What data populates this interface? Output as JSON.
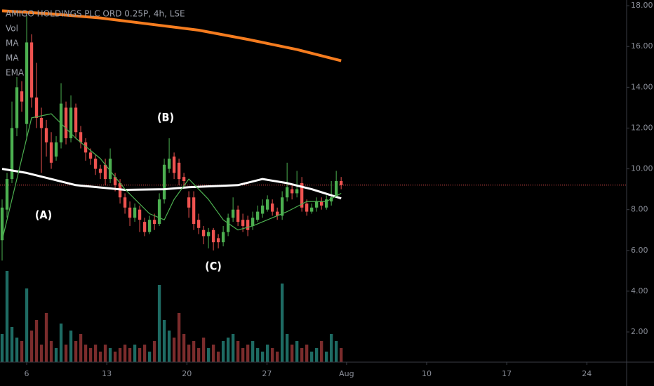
{
  "chart_data": {
    "type": "candlestick",
    "title": "AMIGO HOLDINGS PLC ORD 0.25P, 4h, LSE",
    "indicator_labels": [
      "Vol",
      "MA",
      "MA",
      "EMA"
    ],
    "annotations": [
      "(A)",
      "(B)",
      "(C)"
    ],
    "up_color": "#4caf50",
    "down_color": "#ef5350",
    "volume_up_color": "#1e6b63",
    "volume_down_color": "#7b2c2c",
    "open": [
      6.5,
      8.0,
      9.5,
      12.0,
      13.8,
      12.2,
      16.2,
      13.5,
      12.5,
      12.0,
      11.3,
      10.6,
      11.3,
      13.0,
      11.5,
      13.0,
      11.8,
      11.3,
      10.8,
      10.5,
      10.0,
      10.2,
      9.5,
      9.6,
      9.3,
      8.6,
      8.1,
      7.6,
      8.0,
      7.4,
      6.9,
      7.5,
      7.3,
      8.5,
      10.0,
      10.6,
      10.3,
      9.6,
      8.6,
      8.6,
      7.5,
      7.0,
      6.7,
      7.0,
      6.6,
      6.4,
      6.9,
      7.6,
      8.0,
      7.5,
      7.5,
      7.2,
      7.5,
      7.8,
      8.0,
      8.3,
      7.9,
      7.7,
      8.6,
      9.0,
      8.8,
      9.3,
      8.3,
      7.9,
      8.1,
      8.4,
      8.1,
      8.4,
      8.7,
      9.4
    ],
    "high": [
      8.5,
      9.8,
      13.3,
      14.5,
      14.3,
      17.5,
      16.6,
      15.2,
      13.0,
      12.4,
      11.8,
      11.6,
      14.2,
      13.3,
      13.6,
      13.2,
      12.1,
      11.5,
      11.0,
      10.7,
      10.2,
      10.5,
      11.0,
      9.8,
      9.5,
      8.8,
      8.4,
      8.3,
      8.2,
      7.6,
      7.7,
      7.8,
      8.8,
      10.5,
      11.5,
      10.8,
      10.5,
      9.8,
      8.9,
      8.9,
      7.8,
      7.2,
      7.1,
      7.1,
      6.8,
      7.2,
      7.8,
      8.6,
      8.2,
      7.8,
      7.7,
      7.9,
      8.2,
      8.5,
      8.7,
      8.5,
      8.1,
      8.9,
      10.3,
      9.2,
      9.9,
      9.6,
      8.5,
      8.3,
      8.6,
      8.6,
      8.7,
      9.4,
      9.9,
      9.6
    ],
    "low": [
      5.5,
      7.6,
      9.3,
      11.6,
      12.8,
      11.5,
      13.0,
      12.0,
      9.8,
      10.6,
      10.0,
      10.4,
      11.0,
      11.2,
      11.3,
      11.5,
      11.0,
      10.4,
      10.2,
      9.7,
      9.5,
      9.2,
      9.3,
      8.9,
      8.3,
      7.8,
      7.2,
      7.4,
      6.9,
      6.7,
      6.8,
      7.0,
      7.2,
      8.3,
      9.8,
      9.5,
      9.2,
      9.1,
      7.6,
      7.0,
      6.8,
      6.3,
      6.1,
      6.0,
      6.1,
      6.2,
      6.7,
      7.4,
      7.2,
      6.9,
      6.7,
      7.0,
      7.4,
      7.6,
      7.9,
      7.7,
      7.5,
      7.5,
      8.4,
      8.5,
      8.6,
      7.9,
      7.7,
      7.8,
      7.9,
      8.0,
      8.0,
      8.2,
      8.6,
      9.0
    ],
    "close": [
      8.1,
      9.5,
      12.0,
      14.0,
      13.3,
      16.2,
      13.5,
      12.5,
      12.0,
      11.3,
      10.3,
      11.3,
      13.2,
      11.5,
      13.0,
      11.8,
      11.3,
      10.8,
      10.5,
      10.0,
      9.8,
      9.5,
      10.5,
      9.2,
      8.6,
      8.1,
      7.6,
      8.1,
      7.5,
      6.9,
      7.5,
      7.3,
      8.5,
      10.2,
      10.5,
      9.8,
      9.5,
      9.4,
      8.1,
      7.3,
      7.1,
      6.7,
      6.9,
      6.4,
      6.4,
      6.9,
      7.6,
      8.0,
      7.4,
      7.2,
      7.0,
      7.6,
      7.9,
      8.2,
      8.5,
      7.9,
      7.7,
      8.6,
      9.1,
      8.8,
      9.0,
      8.1,
      7.9,
      8.1,
      8.4,
      8.2,
      8.5,
      8.6,
      9.4,
      9.2
    ],
    "volume": [
      40,
      130,
      50,
      35,
      30,
      105,
      45,
      60,
      25,
      70,
      30,
      20,
      55,
      25,
      45,
      30,
      40,
      25,
      20,
      25,
      15,
      25,
      20,
      15,
      20,
      25,
      20,
      25,
      20,
      25,
      15,
      30,
      110,
      60,
      45,
      35,
      70,
      40,
      25,
      30,
      20,
      35,
      20,
      25,
      15,
      30,
      35,
      40,
      30,
      20,
      25,
      30,
      20,
      15,
      25,
      20,
      15,
      112,
      40,
      25,
      30,
      20,
      25,
      15,
      20,
      30,
      15,
      40,
      30,
      20
    ],
    "vlim": [
      0,
      140
    ],
    "lines": [
      {
        "name": "MA",
        "color": "#f57c1f",
        "width": 4,
        "x": [
          0,
          10,
          20,
          30,
          40,
          50,
          60,
          69
        ],
        "values": [
          17.75,
          17.6,
          17.4,
          17.1,
          16.8,
          16.35,
          15.85,
          15.3
        ]
      },
      {
        "name": "MA",
        "color": "#ffffff",
        "width": 3,
        "x": [
          0,
          5,
          15,
          25,
          33,
          38,
          48,
          53,
          58,
          63,
          69
        ],
        "values": [
          10.0,
          9.8,
          9.2,
          8.97,
          9.0,
          9.1,
          9.2,
          9.5,
          9.3,
          9.0,
          8.55
        ]
      },
      {
        "name": "EMA",
        "color": "#4caf50",
        "width": 1.2,
        "x": [
          0,
          3,
          6,
          10,
          15,
          20,
          25,
          30,
          33,
          35,
          38,
          42,
          45,
          48,
          51,
          55,
          58,
          62,
          66,
          69
        ],
        "values": [
          6.5,
          9.5,
          12.5,
          12.7,
          11.5,
          10.5,
          9.0,
          7.8,
          7.5,
          8.5,
          9.5,
          8.5,
          7.5,
          7.0,
          7.2,
          7.6,
          7.9,
          8.4,
          8.4,
          8.8
        ]
      }
    ],
    "last_price": 9.2,
    "last_price_color": "#ef5350",
    "xlim": [
      -0.43,
      127.1
    ],
    "xticks": [
      {
        "value": 5,
        "label": "6"
      },
      {
        "value": 21.3,
        "label": "13"
      },
      {
        "value": 37.6,
        "label": "20"
      },
      {
        "value": 53.9,
        "label": "27"
      },
      {
        "value": 70.1,
        "label": "Aug"
      },
      {
        "value": 86.4,
        "label": "10"
      },
      {
        "value": 102.7,
        "label": "17"
      },
      {
        "value": 119,
        "label": "24"
      }
    ],
    "ylim": [
      0.52,
      18.28
    ],
    "yticks": [
      {
        "value": 2,
        "label": "2.00"
      },
      {
        "value": 4,
        "label": "4.00"
      },
      {
        "value": 6,
        "label": "6.00"
      },
      {
        "value": 8,
        "label": "8.00"
      },
      {
        "value": 10,
        "label": "10.00"
      },
      {
        "value": 12,
        "label": "12.00"
      },
      {
        "value": 14,
        "label": "14.00"
      },
      {
        "value": 16,
        "label": "16.00"
      },
      {
        "value": 18,
        "label": "18.00"
      }
    ]
  }
}
